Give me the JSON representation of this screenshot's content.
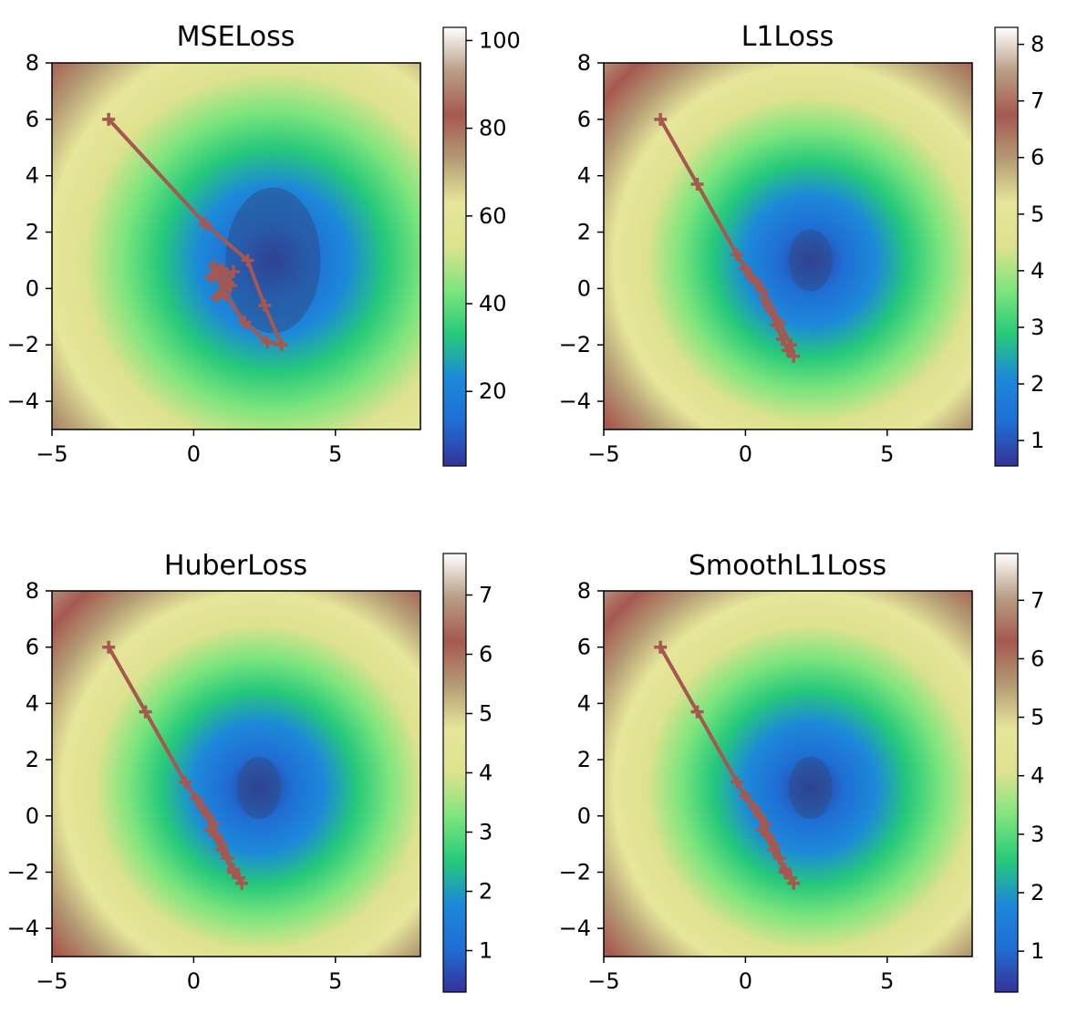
{
  "chart_data": [
    {
      "type": "heatmap",
      "title": "MSELoss",
      "xlim": [
        -5,
        8
      ],
      "ylim": [
        -5,
        8
      ],
      "xticks": [
        "−5",
        "0",
        "5"
      ],
      "yticks": [
        "−4",
        "−2",
        "0",
        "2",
        "4",
        "6",
        "8"
      ],
      "colorbar": {
        "range": [
          3,
          103
        ],
        "ticks": [
          "20",
          "40",
          "60",
          "80",
          "100"
        ],
        "tick_values": [
          20,
          40,
          60,
          80,
          100
        ]
      },
      "minimum": [
        2.8,
        1.0
      ],
      "colormap": "terrain",
      "trajectory": {
        "x": [
          -3.0,
          0.4,
          1.9,
          2.5,
          3.1,
          2.6,
          1.8,
          1.1,
          0.7,
          1.0,
          1.4,
          1.2,
          0.6,
          1.0,
          1.3,
          0.8,
          1.1
        ],
        "y": [
          6.0,
          2.3,
          1.0,
          -0.6,
          -2.0,
          -1.9,
          -1.2,
          -0.2,
          0.8,
          0.5,
          0.6,
          0.2,
          0.4,
          0.7,
          0.1,
          -0.3,
          0.0
        ]
      }
    },
    {
      "type": "heatmap",
      "title": "L1Loss",
      "xlim": [
        -5,
        8
      ],
      "ylim": [
        -5,
        8
      ],
      "xticks": [
        "−5",
        "0",
        "5"
      ],
      "yticks": [
        "−4",
        "−2",
        "0",
        "2",
        "4",
        "6",
        "8"
      ],
      "colorbar": {
        "range": [
          0.55,
          8.3
        ],
        "ticks": [
          "1",
          "2",
          "3",
          "4",
          "5",
          "6",
          "7",
          "8"
        ],
        "tick_values": [
          1,
          2,
          3,
          4,
          5,
          6,
          7,
          8
        ]
      },
      "minimum": [
        2.3,
        1.0
      ],
      "colormap": "terrain",
      "trajectory": {
        "x": [
          -3.0,
          -1.7,
          -0.3,
          0.0,
          0.2,
          0.4,
          0.6,
          0.7,
          0.9,
          1.1,
          1.3,
          1.5,
          1.7,
          1.6,
          1.2,
          0.8
        ],
        "y": [
          6.0,
          3.7,
          1.2,
          0.7,
          0.4,
          0.2,
          -0.1,
          -0.4,
          -0.8,
          -1.3,
          -1.8,
          -2.2,
          -2.4,
          -2.0,
          -1.2,
          -0.6
        ]
      }
    },
    {
      "type": "heatmap",
      "title": "HuberLoss",
      "xlim": [
        -5,
        8
      ],
      "ylim": [
        -5,
        8
      ],
      "xticks": [
        "−5",
        "0",
        "5"
      ],
      "yticks": [
        "−4",
        "−2",
        "0",
        "2",
        "4",
        "6",
        "8"
      ],
      "colorbar": {
        "range": [
          0.3,
          7.7
        ],
        "ticks": [
          "1",
          "2",
          "3",
          "4",
          "5",
          "6",
          "7"
        ],
        "tick_values": [
          1,
          2,
          3,
          4,
          5,
          6,
          7
        ]
      },
      "minimum": [
        2.3,
        1.0
      ],
      "colormap": "terrain",
      "trajectory": {
        "x": [
          -3.0,
          -1.7,
          -0.3,
          0.1,
          0.3,
          0.5,
          0.7,
          0.8,
          1.0,
          1.2,
          1.4,
          1.6,
          1.7,
          1.4,
          1.0,
          0.6
        ],
        "y": [
          6.0,
          3.7,
          1.2,
          0.6,
          0.3,
          0.0,
          -0.3,
          -0.7,
          -1.0,
          -1.5,
          -1.9,
          -2.2,
          -2.4,
          -2.0,
          -1.2,
          -0.5
        ]
      }
    },
    {
      "type": "heatmap",
      "title": "SmoothL1Loss",
      "xlim": [
        -5,
        8
      ],
      "ylim": [
        -5,
        8
      ],
      "xticks": [
        "−5",
        "0",
        "5"
      ],
      "yticks": [
        "−4",
        "−2",
        "0",
        "2",
        "4",
        "6",
        "8"
      ],
      "colorbar": {
        "range": [
          0.3,
          7.8
        ],
        "ticks": [
          "1",
          "2",
          "3",
          "4",
          "5",
          "6",
          "7"
        ],
        "tick_values": [
          1,
          2,
          3,
          4,
          5,
          6,
          7
        ]
      },
      "minimum": [
        2.3,
        1.0
      ],
      "colormap": "terrain",
      "trajectory": {
        "x": [
          -3.0,
          -1.7,
          -0.3,
          0.0,
          0.3,
          0.5,
          0.7,
          0.8,
          1.0,
          1.2,
          1.4,
          1.6,
          1.7,
          1.4,
          1.0,
          0.6
        ],
        "y": [
          6.0,
          3.7,
          1.2,
          0.7,
          0.3,
          0.0,
          -0.3,
          -0.7,
          -1.0,
          -1.5,
          -1.9,
          -2.2,
          -2.4,
          -2.0,
          -1.2,
          -0.5
        ]
      }
    }
  ],
  "colors": {
    "trajectory": "#a65850",
    "colormap_stops": [
      "#333399",
      "#1f6ed4",
      "#1d89d9",
      "#26c97a",
      "#7de57d",
      "#dde28e",
      "#e6e69a",
      "#b49b74",
      "#a65850",
      "#b89e85",
      "#ffffff"
    ]
  }
}
